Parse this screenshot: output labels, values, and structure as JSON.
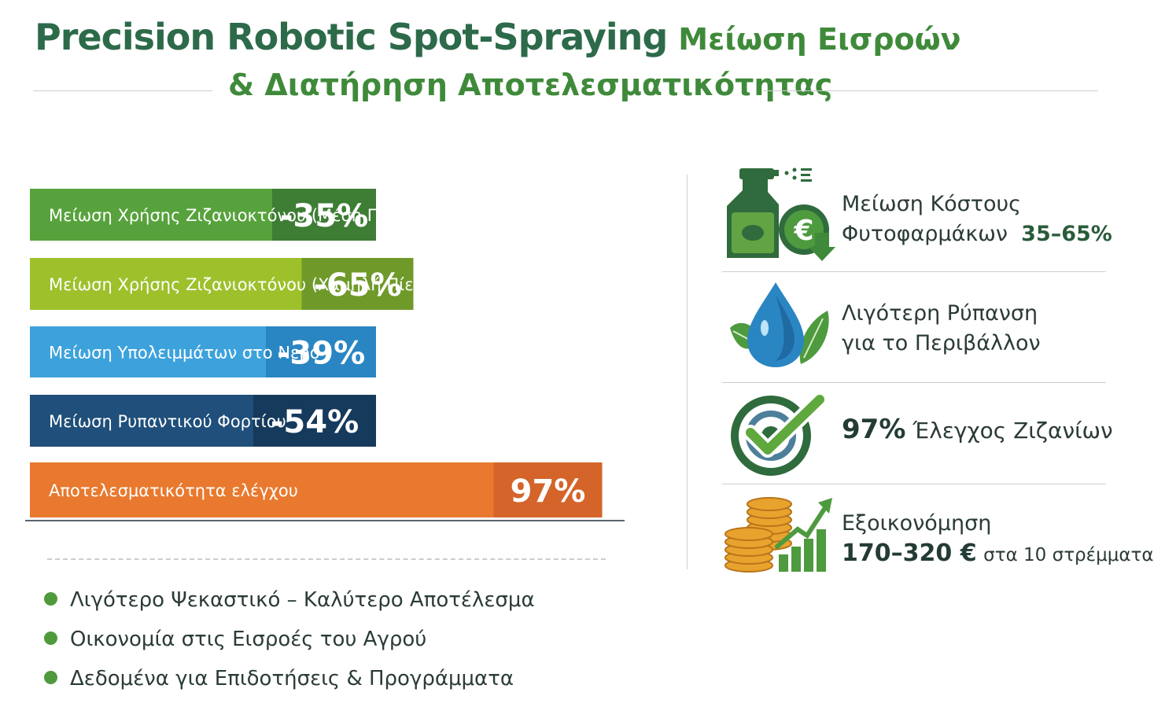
{
  "header": {
    "title_main": "Precision Robotic Spot-Spraying",
    "title_greek_1": "Μείωση Εισροών",
    "title_greek_2": "& Διατήρηση Αποτελεσματικότητας"
  },
  "chart_data": {
    "type": "bar",
    "orientation": "horizontal",
    "categories": [
      "Μείωση Χρήσης Ζιζανιοκτόνου (Μέση Πίεση)",
      "Μείωση Χρήσης Ζιζανιοκτόνου (Χαμηλή Πίεση)",
      "Μείωση Υπολειμμάτων στο Νερό",
      "Μείωση Ρυπαντικού Φορτίου",
      "Αποτελεσματικότητα ελέγχου"
    ],
    "values": [
      -35,
      -65,
      -39,
      -54,
      97
    ],
    "value_labels": [
      "-35%",
      "-65%",
      "-39%",
      "-54%",
      "97%"
    ],
    "colors": [
      "#57a23c",
      "#9ec02b",
      "#3da2dc",
      "#1f4f7a",
      "#e8792e"
    ],
    "value_colors": [
      "#3d7d34",
      "#6f9a2a",
      "#2a86c2",
      "#163a5c",
      "#d4642a"
    ]
  },
  "benefits": [
    {
      "icon": "spray-euro-icon",
      "line1": "Μείωση Κόστους",
      "line2": "Φυτοφαρμάκων",
      "highlight": "35–65%"
    },
    {
      "icon": "water-drop-leaf-icon",
      "line1": "Λιγότερη Ρύπανση",
      "line2": "για το Περιβάλλον"
    },
    {
      "icon": "target-check-icon",
      "highlight": "97%",
      "line1": "Έλεγχος Ζιζανίων"
    },
    {
      "icon": "coins-growth-icon",
      "line1": "Εξοικονόμηση",
      "highlight": "170–320 €",
      "line2": "στα 10 στρέμματα"
    }
  ],
  "bullets": [
    "Λιγότερο Ψεκαστικό – Καλύτερο Αποτέλεσμα",
    "Οικονομία στις Εισροές του Αγρού",
    "Δεδομένα για Επιδοτήσεις & Προγράμματα"
  ]
}
